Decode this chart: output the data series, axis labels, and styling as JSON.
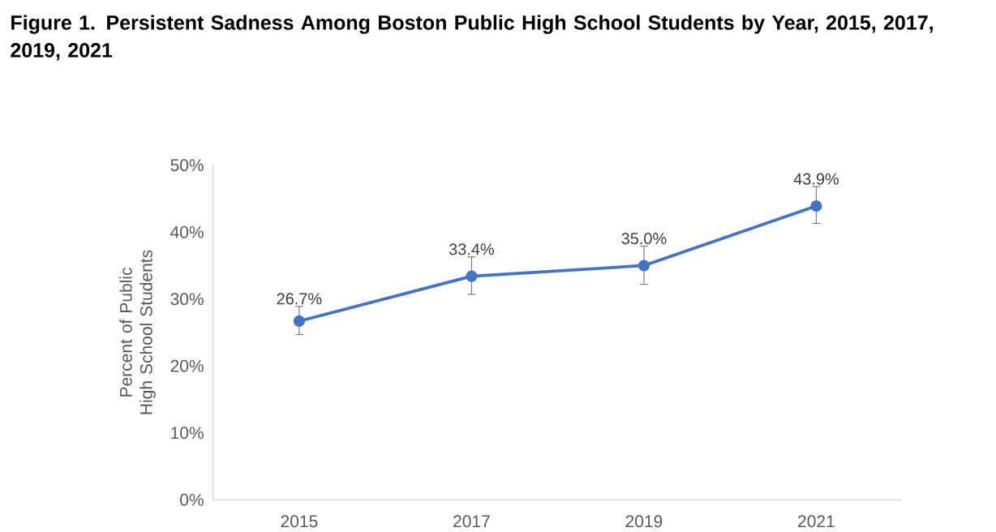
{
  "chart_data": {
    "type": "line",
    "title": "Figure 1. Persistent Sadness Among Boston Public High School Students by Year, 2015, 2017, 2019, 2021",
    "ylabel": "Percent of Public High School Students",
    "categories": [
      "2015",
      "2017",
      "2019",
      "2021"
    ],
    "series": [
      {
        "color": "#4472c4",
        "values": [
          26.7,
          33.4,
          35.0,
          43.9
        ],
        "errors": [
          [
            24.7,
            28.9
          ],
          [
            30.7,
            36.3
          ],
          [
            32.2,
            37.9
          ],
          [
            41.3,
            46.8
          ]
        ],
        "value_labels": [
          "26.7%",
          "33.4%",
          "35.0%",
          "43.9%"
        ]
      }
    ],
    "ylim": [
      0,
      50
    ],
    "yticks": [
      {
        "value": 0,
        "label": "0%"
      },
      {
        "value": 10,
        "label": "10%"
      },
      {
        "value": 20,
        "label": "20%"
      },
      {
        "value": 30,
        "label": "30%"
      },
      {
        "value": 40,
        "label": "40%"
      },
      {
        "value": 50,
        "label": "50%"
      }
    ],
    "grid": false,
    "legend": false,
    "marker": "circle",
    "line_style": "solid"
  }
}
